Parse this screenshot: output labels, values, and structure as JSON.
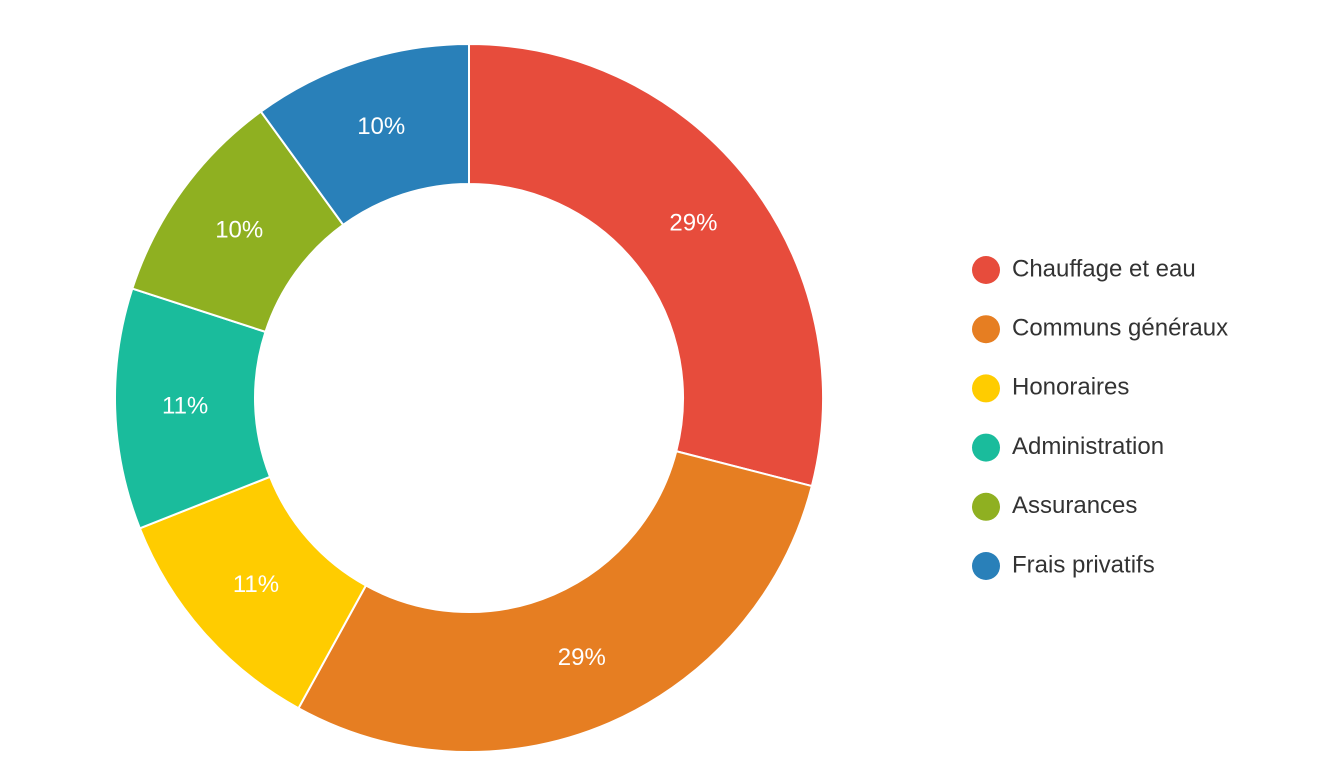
{
  "chart_data": {
    "type": "donut",
    "categories": [
      "Chauffage et eau",
      "Communs généraux",
      "Honoraires",
      "Administration",
      "Assurances",
      "Frais privatifs"
    ],
    "values": [
      29,
      29,
      11,
      11,
      10,
      10
    ],
    "value_labels": [
      "29%",
      "29%",
      "11%",
      "11%",
      "10%",
      "10%"
    ],
    "colors": [
      "#e74c3c",
      "#e67e22",
      "#ffcc00",
      "#1abc9c",
      "#8fb021",
      "#2980b9"
    ],
    "legend": "right"
  }
}
